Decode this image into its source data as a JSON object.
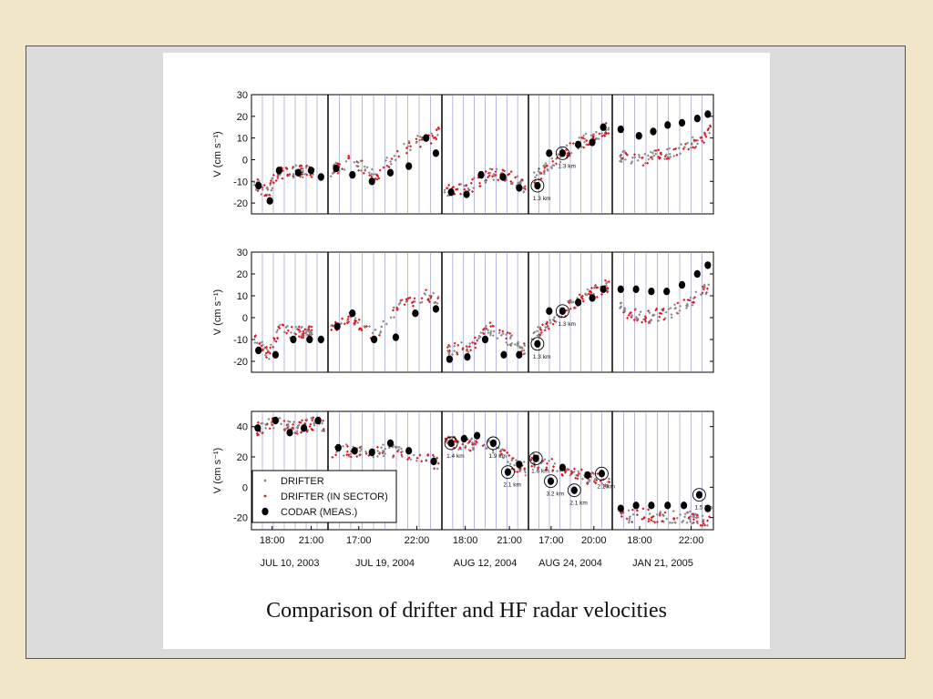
{
  "caption": "Comparison of drifter and HF radar velocities",
  "colors": {
    "drifter": "#888888",
    "in_sector": "#e0141e",
    "codar": "#000000",
    "grid": "#8a8ac8",
    "page_bg": "#f1e6c8",
    "frame_bg": "#dcdcdc"
  },
  "legend": {
    "position": "lower-left of bottom panel",
    "items": [
      {
        "label": "DRIFTER",
        "marker": "small-diamond",
        "color": "#888888"
      },
      {
        "label": "DRIFTER (IN SECTOR)",
        "marker": "small-diamond",
        "color": "#e0141e"
      },
      {
        "label": "CODAR (MEAS.)",
        "marker": "large-circle",
        "color": "#000000"
      }
    ]
  },
  "chart_data": {
    "type": "scatter",
    "ylabel": "V (cm s⁻¹)",
    "grid": true,
    "date_groups": [
      {
        "date": "JUL 10, 2003",
        "ticks": [
          "18:00",
          "21:00"
        ]
      },
      {
        "date": "JUL 19, 2004",
        "ticks": [
          "17:00",
          "22:00"
        ]
      },
      {
        "date": "AUG 12, 2004",
        "ticks": [
          "18:00",
          "21:00"
        ]
      },
      {
        "date": "AUG 24, 2004",
        "ticks": [
          "17:00",
          "20:00"
        ]
      },
      {
        "date": "JAN 21, 2005",
        "ticks": [
          "18:00",
          "22:00"
        ]
      }
    ],
    "panels": [
      {
        "ylim": [
          -25,
          30
        ],
        "yticks": [
          30,
          20,
          10,
          0,
          -10,
          -20
        ],
        "codar": [
          [
            [
              0.06,
              -12
            ],
            [
              0.22,
              -19
            ],
            [
              0.35,
              -5
            ],
            [
              0.62,
              -6
            ],
            [
              0.8,
              -5
            ],
            [
              0.94,
              -8
            ]
          ],
          [
            [
              0.05,
              -4
            ],
            [
              0.2,
              -7
            ],
            [
              0.38,
              -10
            ],
            [
              0.55,
              -6
            ],
            [
              0.72,
              -3
            ],
            [
              0.88,
              10
            ],
            [
              0.97,
              3
            ]
          ],
          [
            [
              0.08,
              -15
            ],
            [
              0.27,
              -16
            ],
            [
              0.45,
              -7
            ],
            [
              0.72,
              -8
            ],
            [
              0.92,
              -13
            ]
          ],
          [
            [
              0.08,
              -12
            ],
            [
              0.23,
              3
            ],
            [
              0.4,
              3
            ],
            [
              0.6,
              7
            ],
            [
              0.78,
              8
            ],
            [
              0.92,
              15
            ]
          ],
          [
            [
              0.06,
              14
            ],
            [
              0.25,
              11
            ],
            [
              0.4,
              13
            ],
            [
              0.55,
              16
            ],
            [
              0.7,
              17
            ],
            [
              0.86,
              19
            ],
            [
              0.97,
              21
            ]
          ]
        ],
        "km_labels": [
          {
            "group": 3,
            "x": 0.08,
            "y": -12,
            "text": "1.3 km"
          },
          {
            "group": 3,
            "x": 0.4,
            "y": 3,
            "text": "1.3 km"
          }
        ]
      },
      {
        "ylim": [
          -25,
          30
        ],
        "yticks": [
          30,
          20,
          10,
          0,
          -10,
          -20
        ],
        "codar": [
          [
            [
              0.06,
              -15
            ],
            [
              0.3,
              -17
            ],
            [
              0.55,
              -10
            ],
            [
              0.78,
              -10
            ],
            [
              0.94,
              -10
            ]
          ],
          [
            [
              0.06,
              -4
            ],
            [
              0.2,
              2
            ],
            [
              0.4,
              -10
            ],
            [
              0.6,
              -9
            ],
            [
              0.78,
              2
            ],
            [
              0.97,
              4
            ]
          ],
          [
            [
              0.06,
              -19
            ],
            [
              0.28,
              -18
            ],
            [
              0.5,
              -10
            ],
            [
              0.73,
              -17
            ],
            [
              0.92,
              -17
            ]
          ],
          [
            [
              0.08,
              -12
            ],
            [
              0.23,
              3
            ],
            [
              0.4,
              3
            ],
            [
              0.6,
              7
            ],
            [
              0.78,
              9
            ],
            [
              0.92,
              13
            ]
          ],
          [
            [
              0.06,
              13
            ],
            [
              0.22,
              13
            ],
            [
              0.38,
              12
            ],
            [
              0.54,
              12
            ],
            [
              0.7,
              15
            ],
            [
              0.86,
              20
            ],
            [
              0.97,
              24
            ]
          ]
        ],
        "km_labels": [
          {
            "group": 3,
            "x": 0.08,
            "y": -12,
            "text": "1.3 km"
          },
          {
            "group": 3,
            "x": 0.4,
            "y": 3,
            "text": "1.3 km"
          }
        ]
      },
      {
        "ylim": [
          -28,
          50
        ],
        "yticks": [
          40,
          20,
          0,
          -20
        ],
        "codar": [
          [
            [
              0.05,
              39
            ],
            [
              0.3,
              44
            ],
            [
              0.5,
              36
            ],
            [
              0.7,
              39
            ],
            [
              0.9,
              44
            ]
          ],
          [
            [
              0.07,
              26
            ],
            [
              0.22,
              24
            ],
            [
              0.38,
              23
            ],
            [
              0.55,
              29
            ],
            [
              0.72,
              24
            ],
            [
              0.95,
              17
            ]
          ],
          [
            [
              0.08,
              29
            ],
            [
              0.24,
              32
            ],
            [
              0.4,
              34
            ],
            [
              0.6,
              29
            ],
            [
              0.78,
              10
            ],
            [
              0.92,
              15
            ]
          ],
          [
            [
              0.06,
              19
            ],
            [
              0.25,
              4
            ],
            [
              0.4,
              13
            ],
            [
              0.55,
              -2
            ],
            [
              0.72,
              8
            ],
            [
              0.9,
              9
            ]
          ],
          [
            [
              0.06,
              -14
            ],
            [
              0.22,
              -12
            ],
            [
              0.38,
              -12
            ],
            [
              0.55,
              -12
            ],
            [
              0.72,
              -12
            ],
            [
              0.88,
              -5
            ],
            [
              0.97,
              -14
            ]
          ]
        ],
        "km_labels": [
          {
            "group": 2,
            "x": 0.08,
            "y": 29,
            "text": "1.4 km"
          },
          {
            "group": 2,
            "x": 0.6,
            "y": 29,
            "text": "1.9 km"
          },
          {
            "group": 2,
            "x": 0.78,
            "y": 10,
            "text": "2.1 km"
          },
          {
            "group": 3,
            "x": 0.06,
            "y": 19,
            "text": "1.6 km"
          },
          {
            "group": 3,
            "x": 0.25,
            "y": 4,
            "text": "3.2 km"
          },
          {
            "group": 3,
            "x": 0.55,
            "y": -2,
            "text": "2.1 km"
          },
          {
            "group": 3,
            "x": 0.9,
            "y": 9,
            "text": "2.1 km"
          },
          {
            "group": 4,
            "x": 0.88,
            "y": -5,
            "text": "1.5 km"
          }
        ]
      }
    ],
    "drifter_trend": [
      [
        [
          [
            0,
            -11
          ],
          [
            0.2,
            -15
          ],
          [
            0.3,
            -7
          ],
          [
            0.6,
            -5
          ],
          [
            0.85,
            -6
          ]
        ],
        [
          [
            0,
            -5
          ],
          [
            0.2,
            0
          ],
          [
            0.4,
            -8
          ],
          [
            0.65,
            5
          ],
          [
            0.9,
            10
          ],
          [
            1,
            12
          ]
        ],
        [
          [
            0,
            -15
          ],
          [
            0.3,
            -13
          ],
          [
            0.55,
            -7
          ],
          [
            0.8,
            -8
          ],
          [
            1,
            -13
          ]
        ],
        [
          [
            0,
            -10
          ],
          [
            0.3,
            0
          ],
          [
            0.6,
            7
          ],
          [
            1,
            15
          ]
        ],
        [
          [
            0.05,
            2
          ],
          [
            0.3,
            0
          ],
          [
            0.55,
            3
          ],
          [
            0.8,
            7
          ],
          [
            1,
            13
          ]
        ]
      ],
      [
        [
          [
            0,
            -10
          ],
          [
            0.2,
            -17
          ],
          [
            0.35,
            -5
          ],
          [
            0.6,
            -7
          ],
          [
            0.85,
            -7
          ]
        ],
        [
          [
            0,
            -5
          ],
          [
            0.2,
            0
          ],
          [
            0.4,
            -9
          ],
          [
            0.65,
            6
          ],
          [
            0.9,
            10
          ],
          [
            1,
            9
          ]
        ],
        [
          [
            0,
            -15
          ],
          [
            0.3,
            -14
          ],
          [
            0.55,
            -5
          ],
          [
            0.8,
            -10
          ],
          [
            1,
            -15
          ]
        ],
        [
          [
            0,
            -10
          ],
          [
            0.3,
            0
          ],
          [
            0.6,
            8
          ],
          [
            1,
            15
          ]
        ],
        [
          [
            0.05,
            4
          ],
          [
            0.3,
            0
          ],
          [
            0.55,
            2
          ],
          [
            0.8,
            8
          ],
          [
            1,
            15
          ]
        ]
      ],
      [
        [
          [
            0,
            38
          ],
          [
            0.3,
            42
          ],
          [
            0.6,
            39
          ],
          [
            0.85,
            42
          ],
          [
            1,
            40
          ]
        ],
        [
          [
            0,
            24
          ],
          [
            0.3,
            24
          ],
          [
            0.6,
            24
          ],
          [
            0.85,
            20
          ],
          [
            1,
            15
          ]
        ],
        [
          [
            0,
            30
          ],
          [
            0.3,
            28
          ],
          [
            0.6,
            27
          ],
          [
            0.85,
            15
          ],
          [
            1,
            12
          ]
        ],
        [
          [
            0,
            18
          ],
          [
            0.3,
            14
          ],
          [
            0.6,
            8
          ],
          [
            0.85,
            5
          ],
          [
            1,
            3
          ]
        ],
        [
          [
            0.05,
            -20
          ],
          [
            0.3,
            -18
          ],
          [
            0.55,
            -20
          ],
          [
            0.8,
            -20
          ],
          [
            1,
            -22
          ]
        ]
      ]
    ]
  }
}
